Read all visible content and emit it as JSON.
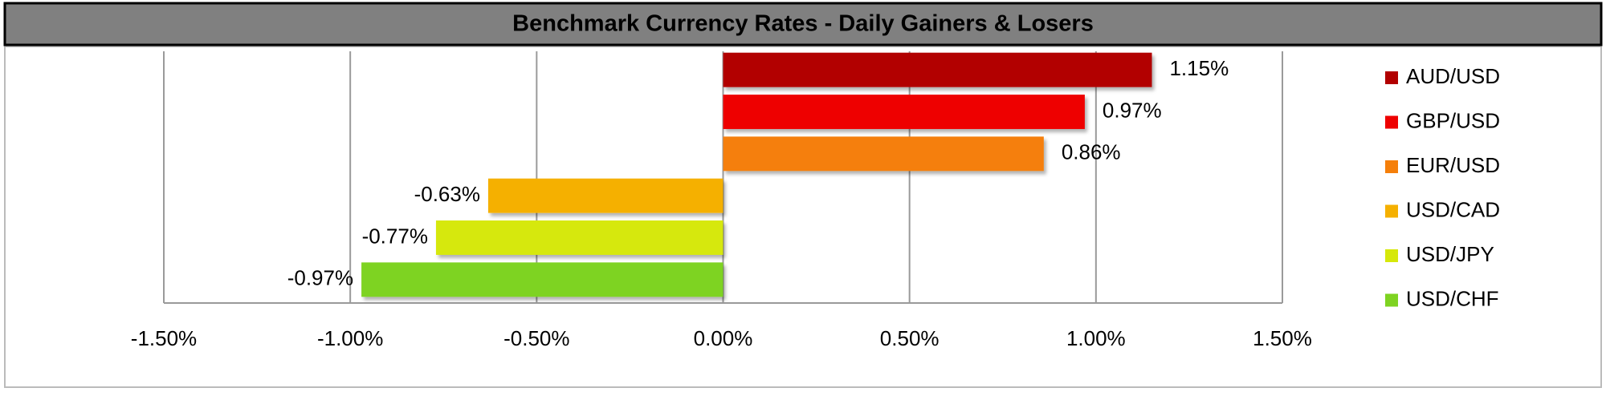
{
  "chart_data": {
    "type": "hbar",
    "title": "Benchmark Currency Rates - Daily Gainers & Losers",
    "categories": [
      "AUD/USD",
      "GBP/USD",
      "EUR/USD",
      "USD/CAD",
      "USD/JPY",
      "USD/CHF"
    ],
    "values": [
      1.15,
      0.97,
      0.86,
      -0.63,
      -0.77,
      -0.97
    ],
    "value_labels": [
      "1.15%",
      "0.97%",
      "0.86%",
      "-0.63%",
      "-0.77%",
      "-0.97%"
    ],
    "colors": [
      "#b20000",
      "#ee0000",
      "#f57f0a",
      "#f5b000",
      "#d6e80a",
      "#7ed321"
    ],
    "xlim": [
      -1.5,
      1.5
    ],
    "xticks": [
      {
        "value": -1.5,
        "label": "-1.50%"
      },
      {
        "value": -1.0,
        "label": "-1.00%"
      },
      {
        "value": -0.5,
        "label": "-0.50%"
      },
      {
        "value": 0,
        "label": "0.00%"
      },
      {
        "value": 0.5,
        "label": "0.50%"
      },
      {
        "value": 1.0,
        "label": "1.00%"
      },
      {
        "value": 1.5,
        "label": "1.50%"
      }
    ],
    "grid": true,
    "legend": "right"
  }
}
